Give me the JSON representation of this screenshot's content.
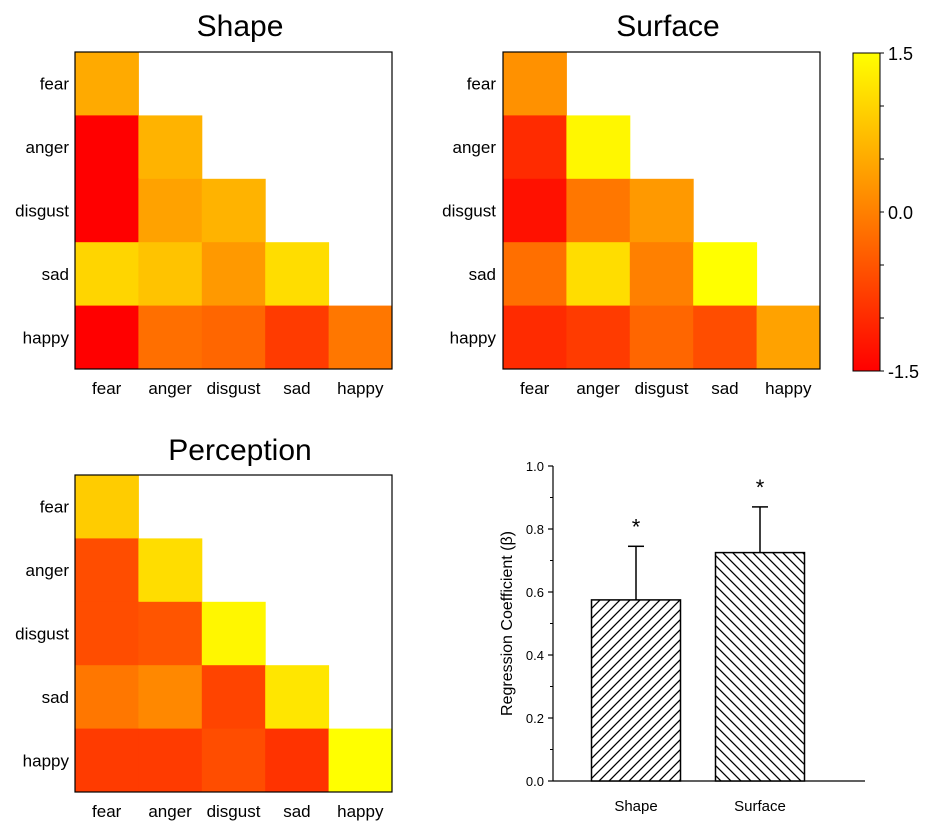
{
  "chart_data": [
    {
      "type": "heatmap",
      "title": "Shape",
      "rows": [
        "fear",
        "anger",
        "disgust",
        "sad",
        "happy"
      ],
      "columns": [
        "fear",
        "anger",
        "disgust",
        "sad",
        "happy"
      ],
      "lower_triangular": true,
      "values": [
        [
          0.5
        ],
        [
          -1.5,
          0.6
        ],
        [
          -1.5,
          0.4,
          0.6
        ],
        [
          1.0,
          0.8,
          0.3,
          1.1
        ],
        [
          -1.5,
          -0.2,
          -0.3,
          -0.8,
          -0.1
        ]
      ],
      "colorbar_range": [
        -1.5,
        1.5
      ]
    },
    {
      "type": "heatmap",
      "title": "Surface",
      "rows": [
        "fear",
        "anger",
        "disgust",
        "sad",
        "happy"
      ],
      "columns": [
        "fear",
        "anger",
        "disgust",
        "sad",
        "happy"
      ],
      "lower_triangular": true,
      "values": [
        [
          0.2
        ],
        [
          -1.0,
          1.4
        ],
        [
          -1.3,
          -0.1,
          0.3
        ],
        [
          -0.2,
          1.1,
          0.0,
          1.6
        ],
        [
          -1.0,
          -0.8,
          -0.3,
          -0.6,
          0.4
        ]
      ],
      "colorbar_range": [
        -1.5,
        1.5
      ]
    },
    {
      "type": "heatmap",
      "title": "Perception",
      "rows": [
        "fear",
        "anger",
        "disgust",
        "sad",
        "happy"
      ],
      "columns": [
        "fear",
        "anger",
        "disgust",
        "sad",
        "happy"
      ],
      "lower_triangular": true,
      "values": [
        [
          0.9
        ],
        [
          -0.6,
          1.1
        ],
        [
          -0.6,
          -0.5,
          1.4
        ],
        [
          -0.1,
          0.1,
          -0.7,
          1.2
        ],
        [
          -0.8,
          -0.8,
          -0.6,
          -0.9,
          1.5
        ]
      ],
      "colorbar_range": [
        -1.5,
        1.5
      ]
    },
    {
      "type": "colorbar",
      "range": [
        -1.5,
        1.5
      ],
      "tick_labels": [
        "1.5",
        "0.0",
        "-1.5"
      ],
      "tick_values": [
        1.5,
        0.0,
        -1.5
      ],
      "colors": [
        "#ff0000",
        "#ff8000",
        "#ffff00"
      ]
    },
    {
      "type": "bar",
      "categories": [
        "Shape",
        "Surface"
      ],
      "values": [
        0.575,
        0.725
      ],
      "errors": [
        0.17,
        0.145
      ],
      "annotations": [
        "*",
        "*"
      ],
      "ylabel": "Regression Coefficient (β)",
      "ylim": [
        0.0,
        1.0
      ],
      "yticks": [
        "0.0",
        "0.2",
        "0.4",
        "0.6",
        "0.8",
        "1.0"
      ],
      "fill": "diagonal hatch"
    }
  ]
}
